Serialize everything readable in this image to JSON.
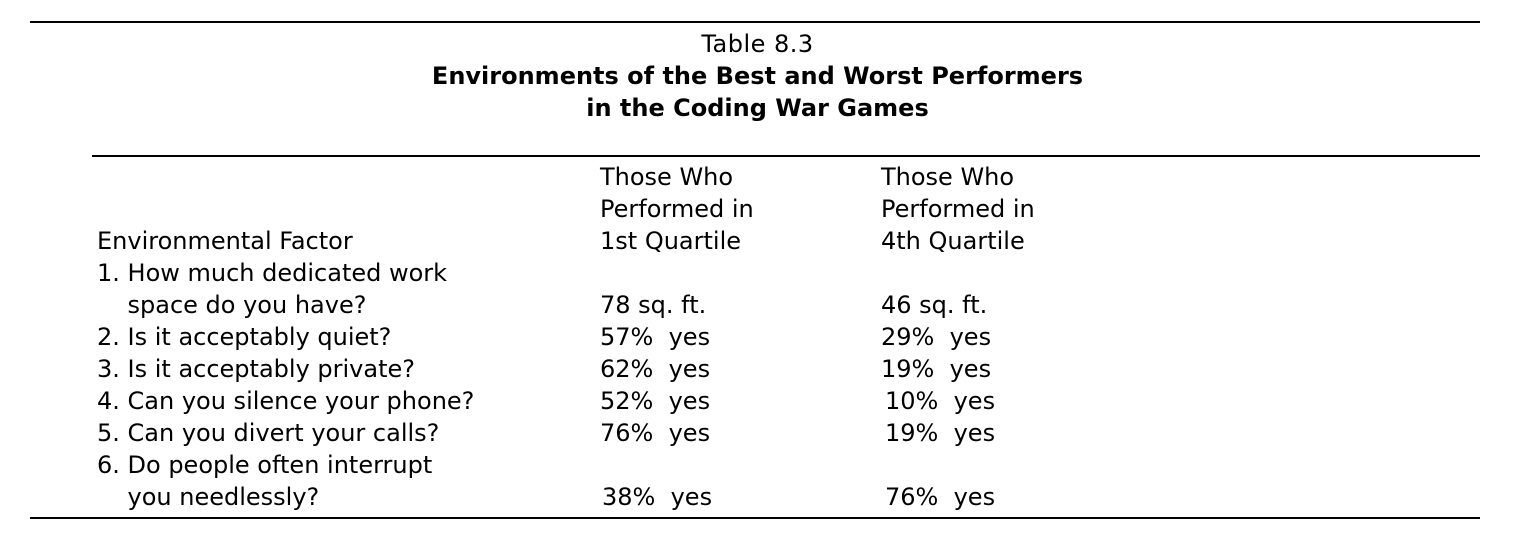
{
  "table": {
    "number": "Table 8.3",
    "title_line_1": "Environments of the Best and Worst Performers",
    "title_line_2": "in the Coding War Games",
    "headers": {
      "factor": "Environmental Factor",
      "q1": [
        "Those Who",
        "Performed in",
        "1st Quartile"
      ],
      "q4": [
        "Those Who",
        "Performed in",
        "4th Quartile"
      ]
    },
    "rows": [
      {
        "factor_lines": [
          "1. How much dedicated work",
          "    space do you have?"
        ],
        "q1": "78 sq. ft.",
        "q4": "46 sq. ft."
      },
      {
        "factor_lines": [
          "2. Is it acceptably quiet?"
        ],
        "q1": "57%  yes",
        "q4": "29%  yes"
      },
      {
        "factor_lines": [
          "3. Is it acceptably private?"
        ],
        "q1": "62%  yes",
        "q4": "19%  yes"
      },
      {
        "factor_lines": [
          "4. Can you silence your phone?"
        ],
        "q1": "52%  yes",
        "q4": "10%  yes"
      },
      {
        "factor_lines": [
          "5. Can you divert your calls?"
        ],
        "q1": "76%  yes",
        "q4": "19%  yes"
      },
      {
        "factor_lines": [
          "6. Do people often interrupt",
          "    you needlessly?"
        ],
        "q1": "38%  yes",
        "q4": "76%  yes"
      }
    ]
  }
}
